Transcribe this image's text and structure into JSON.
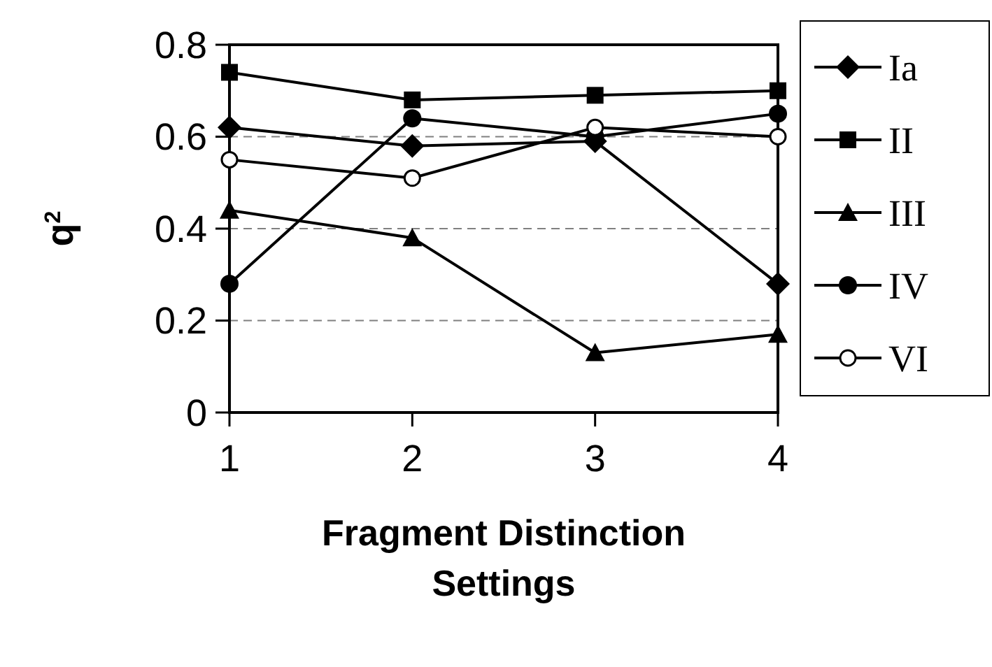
{
  "chart_data": {
    "type": "line",
    "xlabel": "Fragment Distinction Settings",
    "ylabel": "q$^{2}$",
    "x": [
      1,
      2,
      3,
      4
    ],
    "xlim": [
      1,
      4
    ],
    "xticks": [
      1,
      2,
      3,
      4
    ],
    "ylim": [
      0,
      0.8
    ],
    "yticks": [
      0,
      0.2,
      0.4,
      0.6,
      0.8
    ],
    "grid": "y",
    "legend": "right",
    "series": [
      {
        "name": "Ia",
        "color": "#000000",
        "marker": "diamond",
        "values": [
          0.62,
          0.58,
          0.59,
          0.28
        ]
      },
      {
        "name": "II",
        "color": "#000000",
        "marker": "square",
        "values": [
          0.74,
          0.68,
          0.69,
          0.7
        ]
      },
      {
        "name": "III",
        "color": "#000000",
        "marker": "triangle",
        "values": [
          0.44,
          0.38,
          0.13,
          0.17
        ]
      },
      {
        "name": "IV",
        "color": "#000000",
        "marker": "circle",
        "values": [
          0.28,
          0.64,
          0.6,
          0.65
        ]
      },
      {
        "name": "VI",
        "color": "#000000",
        "marker": "open-circle",
        "values": [
          0.55,
          0.51,
          0.62,
          0.6
        ]
      }
    ]
  }
}
